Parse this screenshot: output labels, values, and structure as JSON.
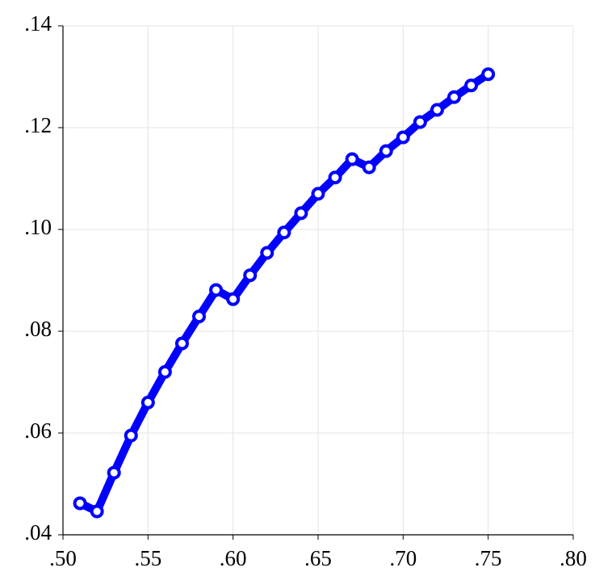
{
  "chart_data": {
    "type": "line",
    "color": "#0000ff",
    "grid": true,
    "x": [
      0.51,
      0.52,
      0.53,
      0.54,
      0.55,
      0.56,
      0.57,
      0.58,
      0.59,
      0.6,
      0.61,
      0.62,
      0.63,
      0.64,
      0.65,
      0.66,
      0.67,
      0.68,
      0.69,
      0.7,
      0.71,
      0.72,
      0.73,
      0.74,
      0.75
    ],
    "values": [
      0.0462,
      0.0446,
      0.0522,
      0.0595,
      0.066,
      0.072,
      0.0776,
      0.0829,
      0.0881,
      0.0863,
      0.091,
      0.0954,
      0.0994,
      0.1032,
      0.107,
      0.1102,
      0.1138,
      0.1122,
      0.1154,
      0.1181,
      0.1211,
      0.1235,
      0.126,
      0.1283,
      0.1305
    ],
    "xlim": [
      0.5,
      0.8
    ],
    "xticks": [
      {
        "value": 0.5,
        "label": ".50"
      },
      {
        "value": 0.55,
        "label": ".55"
      },
      {
        "value": 0.6,
        "label": ".60"
      },
      {
        "value": 0.65,
        "label": ".65"
      },
      {
        "value": 0.7,
        "label": ".70"
      },
      {
        "value": 0.75,
        "label": ".75"
      },
      {
        "value": 0.8,
        "label": ".80"
      }
    ],
    "ylim": [
      0.04,
      0.14
    ],
    "yticks": [
      {
        "value": 0.04,
        "label": ".04"
      },
      {
        "value": 0.06,
        "label": ".06"
      },
      {
        "value": 0.08,
        "label": ".08"
      },
      {
        "value": 0.1,
        "label": ".10"
      },
      {
        "value": 0.12,
        "label": ".12"
      },
      {
        "value": 0.14,
        "label": ".14"
      }
    ]
  }
}
